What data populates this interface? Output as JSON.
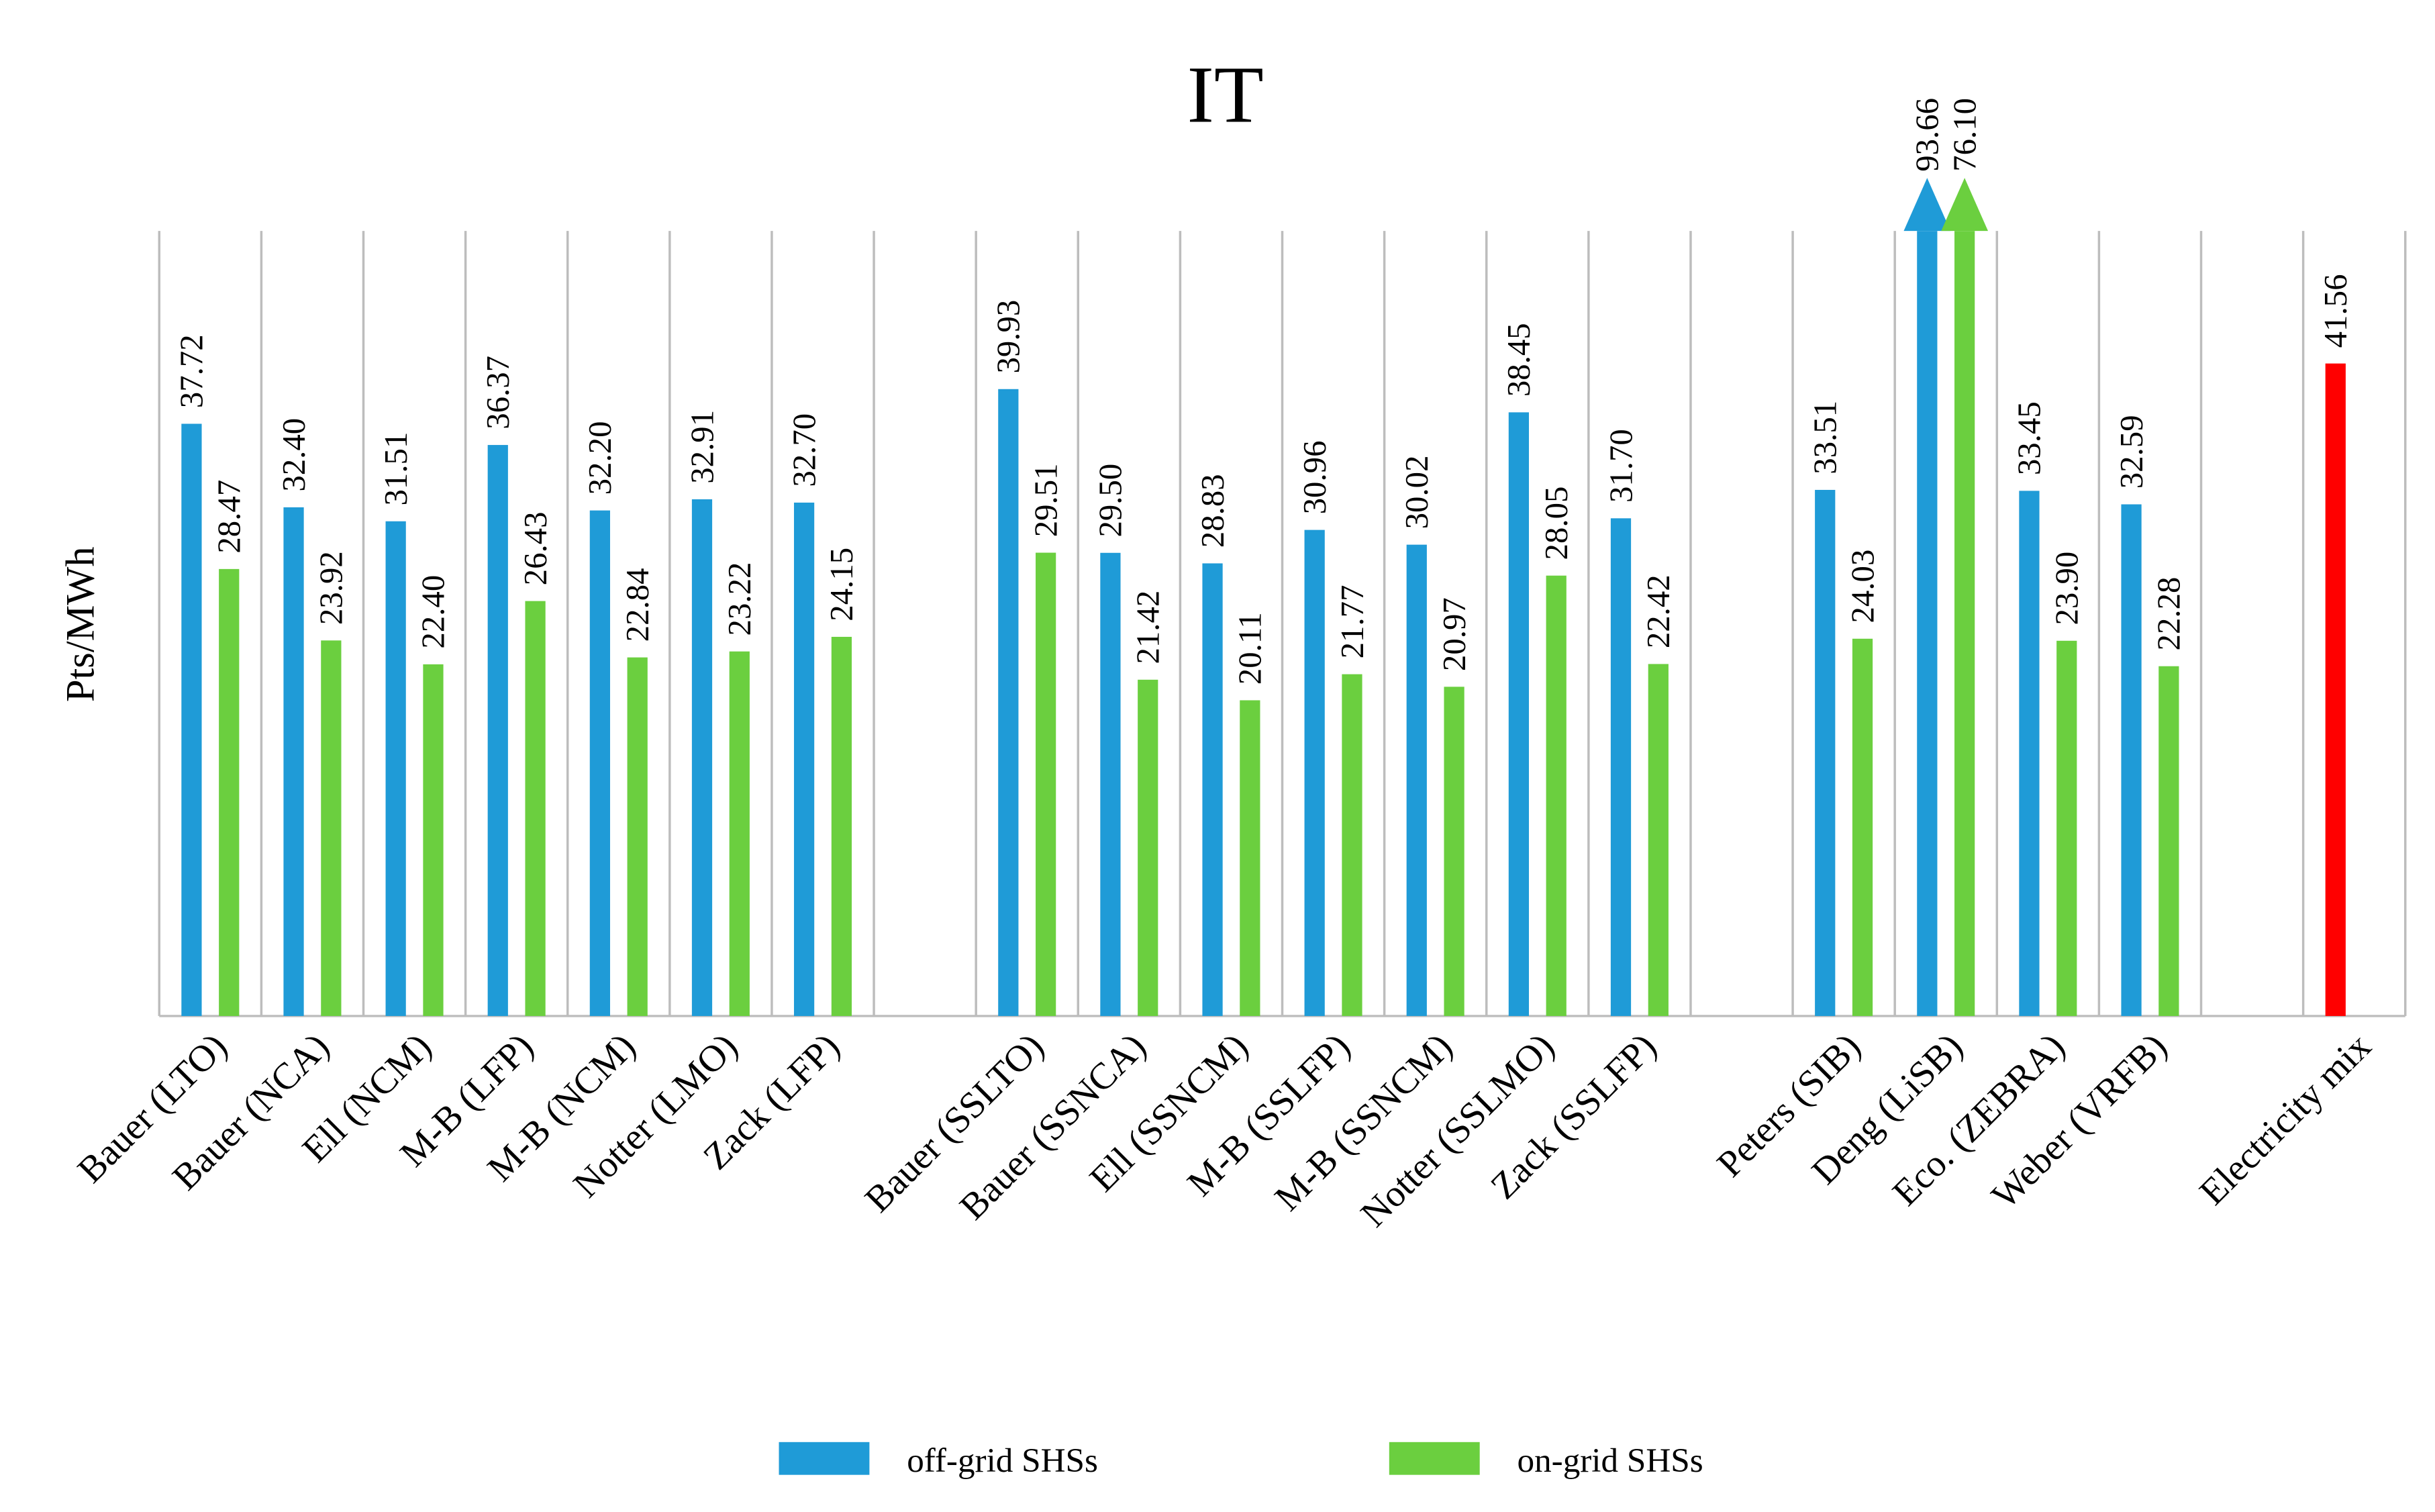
{
  "chart_data": {
    "type": "bar",
    "title": "IT",
    "y_label": "Pts/MWh",
    "categories": [
      "Bauer (LTO)",
      "Bauer (NCA)",
      "Ell (NCM)",
      "M-B (LFP)",
      "M-B (NCM)",
      "Notter (LMO)",
      "Zack (LFP)",
      null,
      "Bauer (SSLTO)",
      "Bauer (SSNCA)",
      "Ell (SSNCM)",
      "M-B (SSLFP)",
      "M-B (SSNCM)",
      "Notter (SSLMO)",
      "Zack (SSLFP)",
      null,
      "Peters (SIB)",
      "Deng (LiSB)",
      "Eco. (ZEBRA)",
      "Weber (VRFB)",
      null,
      "Electricity mix"
    ],
    "series": [
      {
        "name": "off-grid SHSs",
        "color": "#1f9bd7",
        "values": [
          37.72,
          32.4,
          31.51,
          36.37,
          32.2,
          32.91,
          32.7,
          null,
          39.93,
          29.5,
          28.83,
          30.96,
          30.02,
          38.45,
          31.7,
          null,
          33.51,
          93.66,
          33.45,
          32.59,
          null,
          null
        ],
        "value_labels": [
          "37.72",
          "32.40",
          "31.51",
          "36.37",
          "32.20",
          "32.91",
          "32.70",
          null,
          "39.93",
          "29.50",
          "28.83",
          "30.96",
          "30.02",
          "38.45",
          "31.70",
          null,
          "33.51",
          "93.66",
          "33.45",
          "32.59",
          null,
          null
        ]
      },
      {
        "name": "on-grid SHSs",
        "color": "#6bcf3f",
        "values": [
          28.47,
          23.92,
          22.4,
          26.43,
          22.84,
          23.22,
          24.15,
          null,
          29.51,
          21.42,
          20.11,
          21.77,
          20.97,
          28.05,
          22.42,
          null,
          24.03,
          76.1,
          23.9,
          22.28,
          null,
          null
        ],
        "value_labels": [
          "28.47",
          "23.92",
          "22.40",
          "26.43",
          "22.84",
          "23.22",
          "24.15",
          null,
          "29.51",
          "21.42",
          "20.11",
          "21.77",
          "20.97",
          "28.05",
          "22.42",
          null,
          "24.03",
          "76.10",
          "23.90",
          "22.28",
          null,
          null
        ]
      },
      {
        "color": "#ff0000",
        "values": [
          null,
          null,
          null,
          null,
          null,
          null,
          null,
          null,
          null,
          null,
          null,
          null,
          null,
          null,
          null,
          null,
          null,
          null,
          null,
          null,
          null,
          41.56
        ],
        "value_labels": [
          null,
          null,
          null,
          null,
          null,
          null,
          null,
          null,
          null,
          null,
          null,
          null,
          null,
          null,
          null,
          null,
          null,
          null,
          null,
          null,
          null,
          "41.56"
        ]
      }
    ],
    "ylim": [
      0,
      50
    ]
  }
}
